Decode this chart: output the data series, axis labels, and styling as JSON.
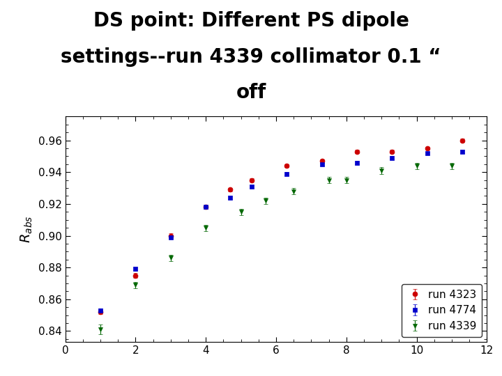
{
  "title_line1": "DS point: Different PS dipole",
  "title_line2": "settings--run 4339 collimator 0.1 “",
  "title_line3": "off",
  "ylabel": "R$_{abs}$",
  "xlabel": "",
  "xlim": [
    0,
    12
  ],
  "ylim": [
    0.833,
    0.975
  ],
  "yticks": [
    0.84,
    0.86,
    0.88,
    0.9,
    0.92,
    0.94,
    0.96
  ],
  "xticks": [
    0,
    2,
    4,
    6,
    8,
    10,
    12
  ],
  "background": "#ffffff",
  "series": [
    {
      "label": "run 4323",
      "color": "#cc0000",
      "marker": "o",
      "markersize": 5,
      "x": [
        1.0,
        2.0,
        3.0,
        4.0,
        4.7,
        5.3,
        6.3,
        7.3,
        8.3,
        9.3,
        10.3,
        11.3
      ],
      "y": [
        0.852,
        0.875,
        0.9,
        0.918,
        0.929,
        0.935,
        0.944,
        0.947,
        0.953,
        0.953,
        0.955,
        0.96
      ],
      "yerr": [
        0.0015,
        0.0015,
        0.0015,
        0.001,
        0.001,
        0.001,
        0.001,
        0.001,
        0.001,
        0.001,
        0.001,
        0.001
      ]
    },
    {
      "label": "run 4774",
      "color": "#0000cc",
      "marker": "s",
      "markersize": 5,
      "x": [
        1.0,
        2.0,
        3.0,
        4.0,
        4.7,
        5.3,
        6.3,
        7.3,
        8.3,
        9.3,
        10.3,
        11.3
      ],
      "y": [
        0.853,
        0.879,
        0.899,
        0.918,
        0.924,
        0.931,
        0.939,
        0.945,
        0.946,
        0.949,
        0.952,
        0.953
      ],
      "yerr": [
        0.001,
        0.001,
        0.001,
        0.001,
        0.001,
        0.001,
        0.001,
        0.001,
        0.001,
        0.001,
        0.001,
        0.001
      ]
    },
    {
      "label": "run 4339",
      "color": "#006600",
      "marker": "v",
      "markersize": 5,
      "x": [
        1.0,
        2.0,
        3.0,
        4.0,
        5.0,
        5.7,
        6.5,
        7.5,
        8.0,
        9.0,
        10.0,
        11.0
      ],
      "y": [
        0.841,
        0.869,
        0.886,
        0.905,
        0.915,
        0.922,
        0.928,
        0.935,
        0.935,
        0.941,
        0.944,
        0.944
      ],
      "yerr": [
        0.003,
        0.002,
        0.002,
        0.002,
        0.002,
        0.002,
        0.002,
        0.002,
        0.002,
        0.002,
        0.002,
        0.002
      ]
    }
  ],
  "legend_loc": "lower right",
  "title_fontsize": 20,
  "axis_fontsize": 14
}
